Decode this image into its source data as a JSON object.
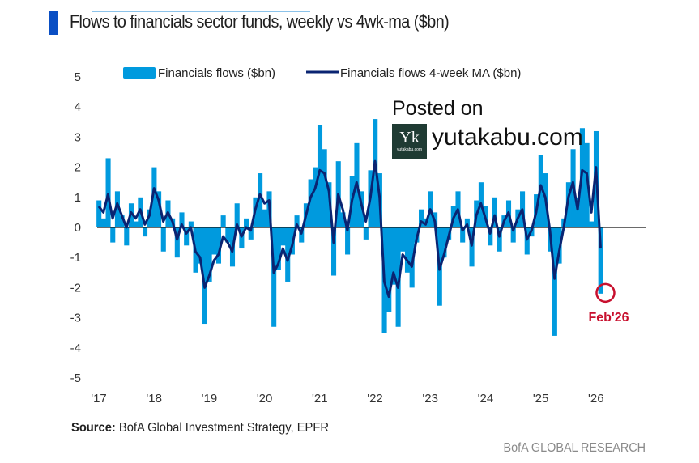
{
  "header": {
    "title": "Flows to financials sector funds, weekly vs 4wk-ma ($bn)"
  },
  "watermark": {
    "line1": "Posted on",
    "site": "yutakabu.com",
    "logo_letter": "Yk",
    "logo_small": "yutakabu.com"
  },
  "footer": {
    "source_label": "Source:",
    "source_text": " BofA Global Investment Strategy, EPFR",
    "brand": "BofA GLOBAL RESEARCH"
  },
  "colors": {
    "flows": "#009ade",
    "ma": "#0a2472",
    "annotation": "#c8102e"
  },
  "chart_data": {
    "type": "area",
    "title": "Flows to financials sector funds, weekly vs 4wk-ma ($bn)",
    "xlabel": "",
    "ylabel": "",
    "ylim": [
      -5,
      5
    ],
    "yticks": [
      5,
      4,
      3,
      2,
      1,
      0,
      -1,
      -2,
      -3,
      -4,
      -5
    ],
    "xticks": [
      "'17",
      "'18",
      "'19",
      "'20",
      "'21",
      "'22",
      "'23",
      "'24",
      "'25",
      "'26"
    ],
    "x_start": "2017-01",
    "x_frequency": "monthly (approx. sampled from weekly)",
    "legend": {
      "position": "top",
      "entries": [
        "Financials flows ($bn)",
        "Financials flows 4-week MA ($bn)"
      ]
    },
    "series": [
      {
        "name": "Financials flows ($bn)",
        "values": [
          0.9,
          0.3,
          2.3,
          -0.5,
          1.2,
          0.4,
          -0.6,
          0.8,
          0.2,
          1.0,
          -0.3,
          0.6,
          2.0,
          1.2,
          -0.8,
          0.9,
          0.3,
          -1.0,
          0.5,
          -0.6,
          0.2,
          -1.5,
          -1.2,
          -3.2,
          -1.8,
          -0.9,
          -1.2,
          0.4,
          -0.5,
          -1.3,
          0.8,
          -0.7,
          0.3,
          -0.4,
          1.0,
          1.8,
          0.6,
          1.2,
          -3.3,
          -1.4,
          -0.6,
          -1.8,
          -0.9,
          0.4,
          -0.5,
          0.8,
          1.6,
          2.0,
          3.4,
          2.6,
          1.5,
          -1.6,
          2.2,
          0.5,
          -0.9,
          1.7,
          2.8,
          1.2,
          -0.4,
          1.9,
          3.6,
          1.8,
          -3.5,
          -2.8,
          -1.9,
          -3.3,
          -0.8,
          -1.5,
          -2.0,
          -0.5,
          0.6,
          0.3,
          1.2,
          0.5,
          -2.6,
          -1.0,
          -0.4,
          0.7,
          1.2,
          -0.5,
          0.3,
          -1.3,
          0.9,
          1.5,
          0.7,
          -0.6,
          1.0,
          -0.8,
          0.4,
          0.9,
          -0.5,
          0.6,
          1.2,
          -0.9,
          -0.3,
          1.1,
          2.4,
          1.8,
          -0.8,
          -3.6,
          -1.2,
          0.3,
          1.5,
          2.6,
          1.0,
          3.3,
          2.8,
          0.2,
          3.2,
          -2.2
        ]
      },
      {
        "name": "Financials flows 4-week MA ($bn)",
        "values": [
          0.7,
          0.5,
          1.1,
          0.3,
          0.8,
          0.4,
          0.0,
          0.5,
          0.3,
          0.6,
          0.1,
          0.4,
          1.3,
          0.9,
          0.2,
          0.5,
          0.2,
          -0.4,
          0.1,
          -0.2,
          0.0,
          -0.8,
          -1.0,
          -2.0,
          -1.6,
          -1.1,
          -0.9,
          -0.3,
          -0.5,
          -0.8,
          0.1,
          -0.3,
          0.0,
          -0.1,
          0.6,
          1.1,
          0.8,
          0.9,
          -1.5,
          -1.2,
          -0.7,
          -1.1,
          -0.6,
          0.1,
          -0.2,
          0.4,
          1.0,
          1.3,
          1.9,
          1.8,
          1.2,
          -0.5,
          1.1,
          0.6,
          -0.1,
          0.9,
          1.5,
          0.8,
          0.2,
          1.0,
          2.2,
          1.0,
          -1.8,
          -2.3,
          -1.5,
          -2.0,
          -0.9,
          -1.1,
          -1.3,
          -0.4,
          0.2,
          0.1,
          0.6,
          0.2,
          -1.4,
          -0.9,
          -0.3,
          0.3,
          0.6,
          -0.1,
          0.1,
          -0.6,
          0.4,
          0.8,
          0.3,
          -0.2,
          0.4,
          -0.3,
          0.2,
          0.5,
          -0.1,
          0.3,
          0.6,
          -0.4,
          -0.1,
          0.5,
          1.4,
          1.0,
          -0.1,
          -1.7,
          -0.8,
          0.0,
          1.0,
          1.5,
          0.6,
          1.9,
          1.8,
          0.5,
          2.0,
          -0.7
        ]
      }
    ],
    "annotations": [
      {
        "text": "Feb'26",
        "target_value": -2.2
      }
    ]
  }
}
